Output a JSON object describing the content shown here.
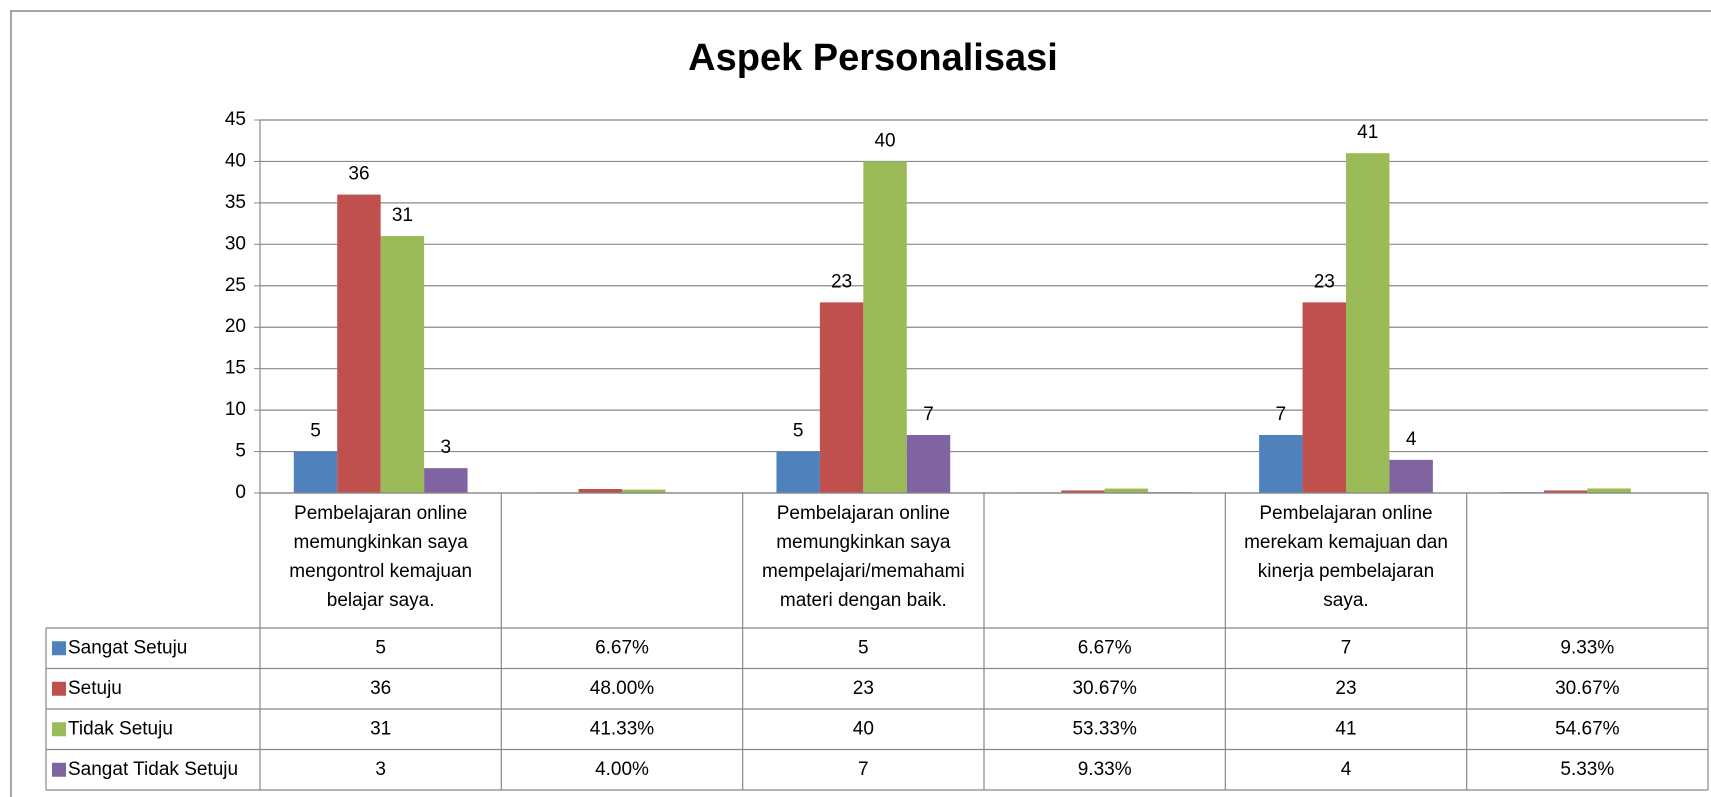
{
  "chart_data": {
    "type": "bar",
    "title": "Aspek Personalisasi",
    "categories": [
      "Pembelajaran online memungkinkan saya mengontrol kemajuan belajar saya.",
      null,
      "Pembelajaran online memungkinkan saya mempelajari/memahami materi dengan baik.",
      null,
      "Pembelajaran online merekam kemajuan dan kinerja pembelajaran saya.",
      null
    ],
    "series": [
      {
        "name": "Sangat Setuju",
        "color": "#4f81bd",
        "values": [
          5,
          0.0667,
          5,
          0.0667,
          7,
          0.0933
        ],
        "value_labels": [
          "5",
          "6.67%",
          "5",
          "6.67%",
          "7",
          "9.33%"
        ]
      },
      {
        "name": "Setuju",
        "color": "#c0504d",
        "values": [
          36,
          0.48,
          23,
          0.3067,
          23,
          0.3067
        ],
        "value_labels": [
          "36",
          "48.00%",
          "23",
          "30.67%",
          "23",
          "30.67%"
        ]
      },
      {
        "name": "Tidak Setuju",
        "color": "#9bbb59",
        "values": [
          31,
          0.4133,
          40,
          0.5333,
          41,
          0.5467
        ],
        "value_labels": [
          "31",
          "41.33%",
          "40",
          "53.33%",
          "41",
          "54.67%"
        ]
      },
      {
        "name": "Sangat Tidak Setuju",
        "color": "#8064a2",
        "values": [
          3,
          0.04,
          7,
          0.0933,
          4,
          0.0533
        ],
        "value_labels": [
          "3",
          "4.00%",
          "7",
          "9.33%",
          "4",
          "5.33%"
        ]
      }
    ],
    "ylim": [
      0,
      45
    ],
    "yticks": [
      0,
      5,
      10,
      15,
      20,
      25,
      30,
      35,
      40,
      45
    ],
    "grid": true,
    "data_table": true
  }
}
